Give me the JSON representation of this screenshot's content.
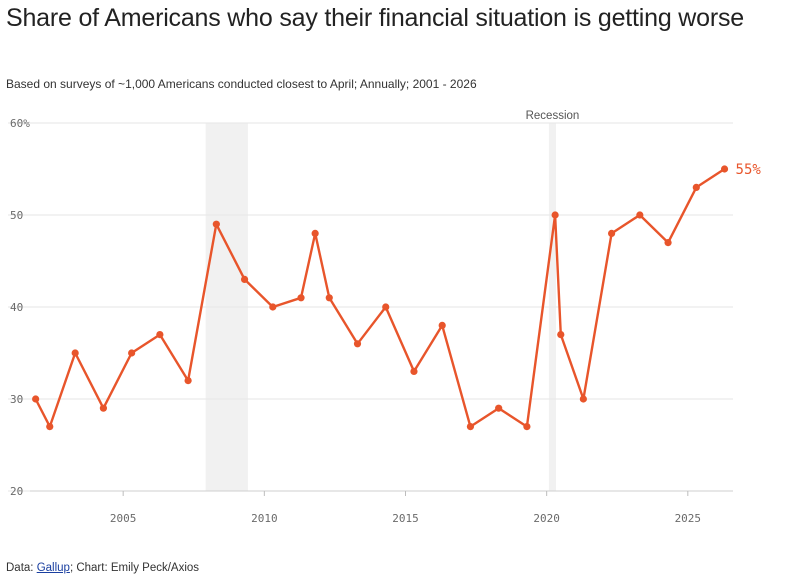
{
  "chart_data": {
    "type": "line",
    "title": "Share of Americans who say their financial situation is getting worse",
    "subtitle": "Based on surveys of ~1,000 Americans conducted closest to April; Annually; 2001 - 2026",
    "xlabel": "",
    "ylabel": "",
    "xlim": [
      2001.7,
      2026.6
    ],
    "ylim": [
      20,
      60
    ],
    "y_ticks": [
      20,
      30,
      40,
      50,
      60
    ],
    "y_tick_labels": [
      "20",
      "30",
      "40",
      "50",
      "60%"
    ],
    "x_ticks": [
      2005,
      2010,
      2015,
      2020,
      2025
    ],
    "x_tick_labels": [
      "2005",
      "2010",
      "2015",
      "2020",
      "2025"
    ],
    "grid": true,
    "color": "#e8552b",
    "recession_color": "#f1f1f1",
    "recessions": [
      {
        "start": 2007.92,
        "end": 2009.42,
        "label": ""
      },
      {
        "start": 2020.08,
        "end": 2020.33,
        "label": "Recession"
      }
    ],
    "series": [
      {
        "name": "Financial situation getting worse",
        "x": [
          2001.9,
          2002.4,
          2003.3,
          2004.3,
          2005.3,
          2006.3,
          2007.3,
          2008.3,
          2009.3,
          2010.3,
          2011.3,
          2011.8,
          2012.3,
          2013.3,
          2014.3,
          2015.3,
          2016.3,
          2017.3,
          2018.3,
          2019.3,
          2020.3,
          2020.5,
          2021.3,
          2022.3,
          2023.3,
          2024.3,
          2025.3,
          2026.3
        ],
        "values": [
          30,
          27,
          35,
          29,
          35,
          37,
          32,
          49,
          43,
          40,
          41,
          48,
          41,
          36,
          40,
          33,
          38,
          27,
          29,
          27,
          50,
          37,
          30,
          48,
          50,
          47,
          53,
          55
        ]
      }
    ],
    "end_label": "55%"
  },
  "footer": {
    "data_prefix": "Data: ",
    "source_link": "Gallup",
    "chart_credit": "; Chart: Emily Peck/Axios"
  }
}
